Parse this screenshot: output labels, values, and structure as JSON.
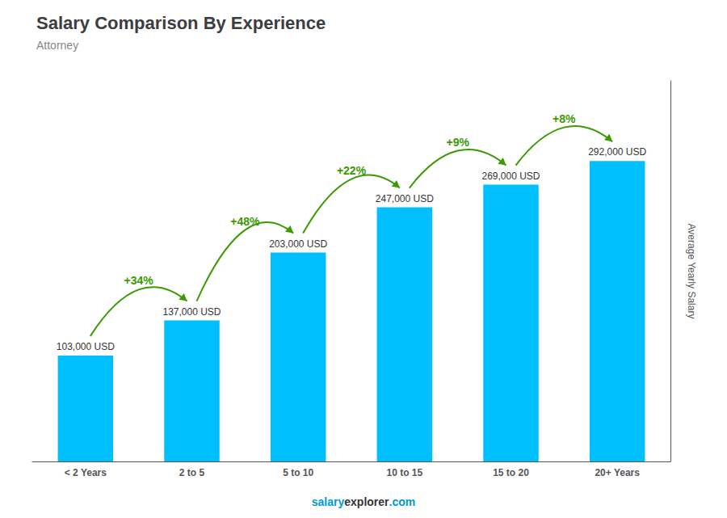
{
  "chart_data": {
    "type": "bar",
    "title": "Salary Comparison By Experience",
    "subtitle": "Attorney",
    "ylabel": "Average Yearly Salary",
    "categories": [
      "< 2 Years",
      "2 to 5",
      "5 to 10",
      "10 to 15",
      "15 to 20",
      "20+ Years"
    ],
    "values": [
      103000,
      137000,
      203000,
      247000,
      269000,
      292000
    ],
    "value_labels": [
      "103,000 USD",
      "137,000 USD",
      "203,000 USD",
      "247,000 USD",
      "269,000 USD",
      "292,000 USD"
    ],
    "data_labels": true,
    "annotations": [
      "+34%",
      "+48%",
      "+22%",
      "+9%",
      "+8%"
    ],
    "footer": [
      "salary",
      "explorer",
      ".com"
    ],
    "color": "#00BFFF",
    "ylim": [
      0,
      370000
    ],
    "grid": false,
    "tick_labels": "x"
  }
}
